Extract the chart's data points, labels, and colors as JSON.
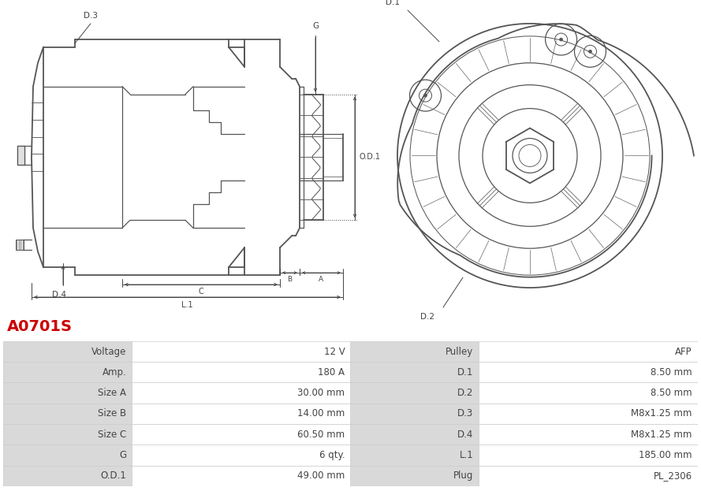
{
  "title": "A0701S",
  "title_color": "#cc0000",
  "table_data": [
    [
      "Voltage",
      "12 V",
      "Pulley",
      "AFP"
    ],
    [
      "Amp.",
      "180 A",
      "D.1",
      "8.50 mm"
    ],
    [
      "Size A",
      "30.00 mm",
      "D.2",
      "8.50 mm"
    ],
    [
      "Size B",
      "14.00 mm",
      "D.3",
      "M8x1.25 mm"
    ],
    [
      "Size C",
      "60.50 mm",
      "D.4",
      "M8x1.25 mm"
    ],
    [
      "G",
      "6 qty.",
      "L.1",
      "185.00 mm"
    ],
    [
      "O.D.1",
      "49.00 mm",
      "Plug",
      "PL_2306"
    ]
  ],
  "header_bg": "#d9d9d9",
  "border_color": "#cccccc",
  "text_color": "#444444",
  "bg_color": "#ffffff",
  "draw_color": "#555555",
  "dim_color": "#444444",
  "font_size_table": 8.5,
  "font_size_title": 14,
  "fig_w": 8.89,
  "fig_h": 6.23,
  "dpi": 100
}
